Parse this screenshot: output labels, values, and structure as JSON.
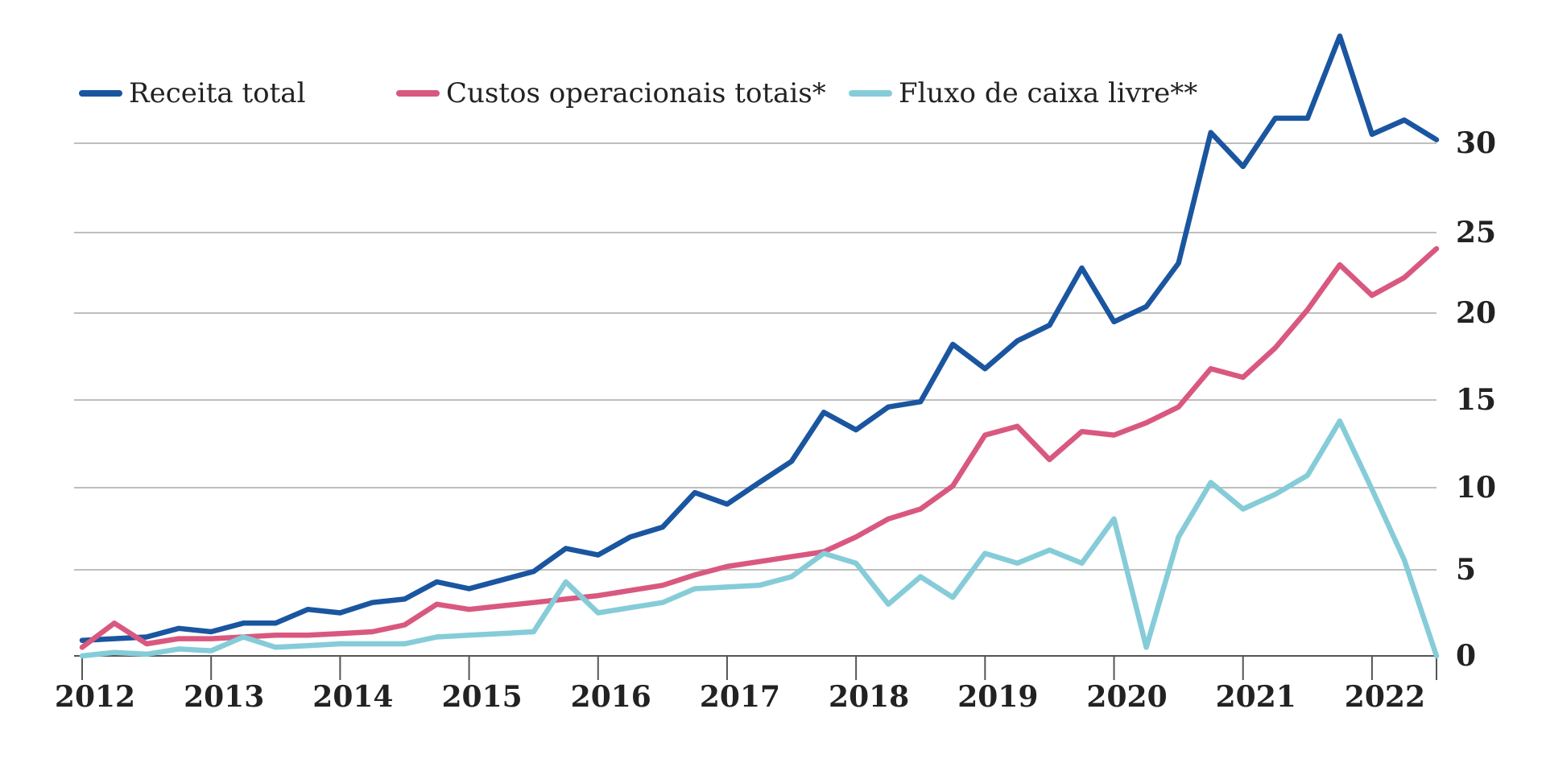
{
  "chart_data": {
    "type": "line",
    "title": "",
    "xlabel": "",
    "ylabel": "",
    "x_ticks": [
      "2012",
      "2013",
      "2014",
      "2015",
      "2016",
      "2017",
      "2018",
      "2019",
      "2020",
      "2021",
      "2022"
    ],
    "y_ticks": [
      0,
      5,
      10,
      15,
      20,
      25,
      30
    ],
    "ylim": [
      0,
      33.5
    ],
    "xlim": [
      2012.0,
      2022.5
    ],
    "grid": true,
    "y_axis_position": "right",
    "legend_position": "top-left",
    "series": [
      {
        "name": "Receita total",
        "color": "#1a55a0",
        "x": [
          2012.0,
          2012.25,
          2012.5,
          2012.75,
          2013.0,
          2013.25,
          2013.5,
          2013.75,
          2014.0,
          2014.25,
          2014.5,
          2014.75,
          2015.0,
          2015.25,
          2015.5,
          2015.75,
          2016.0,
          2016.25,
          2016.5,
          2016.75,
          2017.0,
          2017.25,
          2017.5,
          2017.75,
          2018.0,
          2018.25,
          2018.5,
          2018.75,
          2019.0,
          2019.25,
          2019.5,
          2019.75,
          2020.0,
          2020.25,
          2020.5,
          2020.75,
          2021.0,
          2021.25,
          2021.5,
          2021.75,
          2022.0,
          2022.25,
          2022.5
        ],
        "values": [
          0.9,
          1.0,
          1.1,
          1.6,
          1.4,
          1.9,
          1.9,
          2.7,
          2.5,
          3.1,
          3.3,
          4.3,
          3.9,
          4.4,
          4.9,
          6.3,
          5.9,
          7.0,
          7.6,
          9.7,
          9.0,
          10.3,
          11.5,
          14.3,
          13.3,
          14.6,
          14.9,
          18.2,
          16.8,
          18.4,
          19.3,
          22.8,
          19.5,
          20.4,
          23.1,
          30.6,
          28.7,
          31.4,
          31.4,
          36.0,
          30.5,
          31.3,
          30.2
        ],
        "display_note": "values are on the scale implied by the tick labels"
      },
      {
        "name": "Custos operacionais totais*",
        "color": "#d9587f",
        "x": [
          2012.0,
          2012.25,
          2012.5,
          2012.75,
          2013.0,
          2013.25,
          2013.5,
          2013.75,
          2014.0,
          2014.25,
          2014.5,
          2014.75,
          2015.0,
          2015.25,
          2015.5,
          2015.75,
          2016.0,
          2016.25,
          2016.5,
          2016.75,
          2017.0,
          2017.25,
          2017.5,
          2017.75,
          2018.0,
          2018.25,
          2018.5,
          2018.75,
          2019.0,
          2019.25,
          2019.5,
          2019.75,
          2020.0,
          2020.25,
          2020.5,
          2020.75,
          2021.0,
          2021.25,
          2021.5,
          2021.75,
          2022.0,
          2022.25,
          2022.5
        ],
        "values": [
          0.5,
          1.9,
          0.7,
          1.0,
          1.0,
          1.1,
          1.2,
          1.2,
          1.3,
          1.4,
          1.8,
          3.0,
          2.7,
          2.9,
          3.1,
          3.3,
          3.5,
          3.8,
          4.1,
          4.7,
          5.2,
          5.5,
          5.8,
          6.1,
          7.0,
          8.1,
          8.7,
          10.1,
          13.0,
          13.5,
          11.6,
          13.2,
          13.0,
          13.7,
          14.6,
          16.8,
          16.3,
          18.0,
          20.2,
          23.0,
          21.1,
          22.2,
          24.0
        ]
      },
      {
        "name": "Fluxo de caixa livre**",
        "color": "#85ccd8",
        "x": [
          2012.0,
          2012.25,
          2012.5,
          2012.75,
          2013.0,
          2013.25,
          2013.5,
          2013.75,
          2014.0,
          2014.25,
          2014.5,
          2014.75,
          2015.0,
          2015.25,
          2015.5,
          2015.75,
          2016.0,
          2016.25,
          2016.5,
          2016.75,
          2017.0,
          2017.25,
          2017.5,
          2017.75,
          2018.0,
          2018.25,
          2018.5,
          2018.75,
          2019.0,
          2019.25,
          2019.5,
          2019.75,
          2020.0,
          2020.25,
          2020.5,
          2020.75,
          2021.0,
          2021.25,
          2021.5,
          2021.75,
          2022.0,
          2022.25,
          2022.5
        ],
        "values": [
          0.0,
          0.2,
          0.1,
          0.4,
          0.3,
          1.1,
          0.5,
          0.6,
          0.7,
          0.7,
          0.7,
          1.1,
          1.2,
          1.3,
          1.4,
          4.3,
          2.5,
          2.8,
          3.1,
          3.9,
          4.0,
          4.1,
          4.6,
          6.0,
          5.4,
          3.0,
          4.6,
          3.4,
          6.0,
          5.4,
          6.2,
          5.4,
          8.1,
          0.5,
          7.0,
          10.3,
          8.7,
          9.6,
          10.7,
          13.8,
          9.9,
          5.6,
          0.0
        ]
      }
    ]
  }
}
